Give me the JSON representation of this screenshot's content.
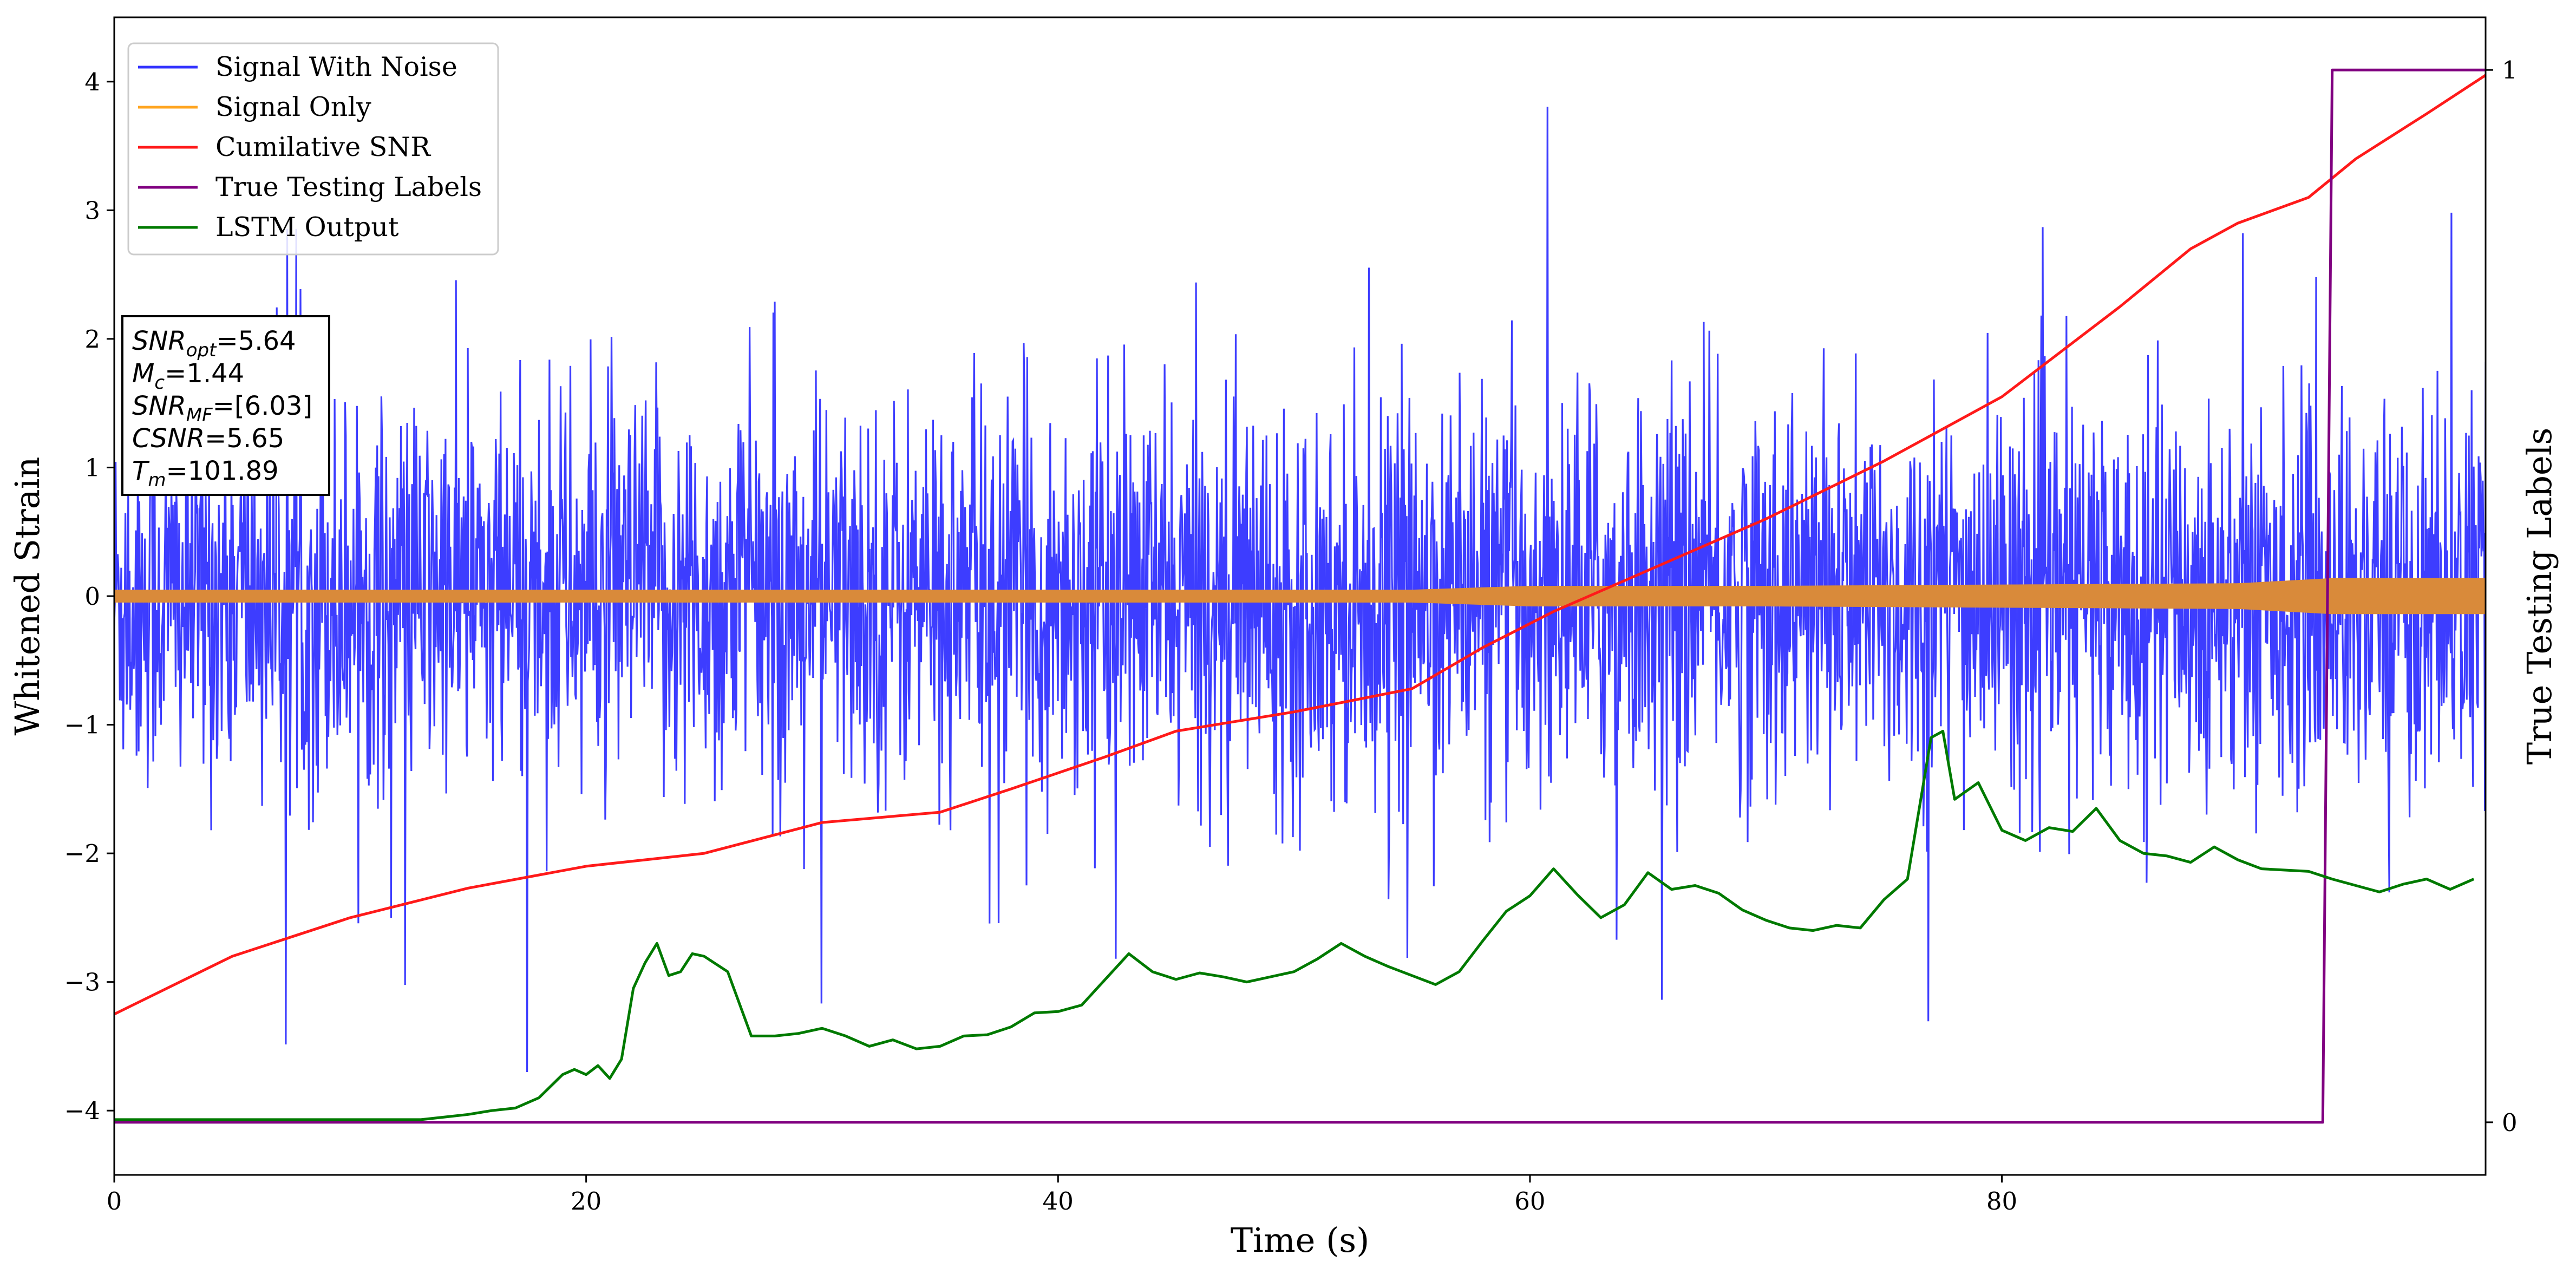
{
  "chart_data": {
    "type": "line",
    "xlabel": "Time (s)",
    "ylabel": "Whitened Strain",
    "y2label": "True Testing Labels",
    "xlim": [
      0,
      100.5
    ],
    "ylim": [
      -4.5,
      4.5
    ],
    "y2lim": [
      -0.05,
      1.05
    ],
    "grid": false,
    "legend_position": "top-left",
    "x_ticks": [
      0,
      20,
      40,
      60,
      80
    ],
    "y_ticks": [
      -4,
      -3,
      -2,
      -1,
      0,
      1,
      2,
      3,
      4
    ],
    "y2_ticks": [
      0,
      1
    ],
    "annotation": {
      "lines": [
        {
          "base": "SNR",
          "sub": "opt",
          "value": "=5.64"
        },
        {
          "base": "M",
          "sub": "c",
          "value": "=1.44"
        },
        {
          "base": "SNR",
          "sub": "MF",
          "value": "=[6.03]"
        },
        {
          "base": "CSNR",
          "sub": "",
          "value": "=5.65"
        },
        {
          "base": "T",
          "sub": "m",
          "value": "=101.89"
        }
      ]
    },
    "series": [
      {
        "name": "Signal With Noise",
        "color": "#3333ff",
        "axis": "left",
        "kind": "noise",
        "approx_std": 0.75,
        "approx_range": [
          -3.7,
          4.1
        ]
      },
      {
        "name": "Signal Only",
        "color": "#ffa520",
        "band_color": "#d98a3a",
        "axis": "left",
        "kind": "band",
        "envelope_x": [
          0,
          20,
          40,
          55,
          60,
          70,
          80,
          90,
          94,
          100.5
        ],
        "envelope_amp": [
          0.05,
          0.05,
          0.05,
          0.05,
          0.08,
          0.08,
          0.09,
          0.1,
          0.14,
          0.14
        ]
      },
      {
        "name": "Cumilative SNR",
        "color": "#ff1a1a",
        "axis": "left",
        "x": [
          0,
          5,
          10,
          15,
          20,
          25,
          30,
          35,
          38,
          42,
          45,
          50,
          55,
          58,
          61,
          65,
          70,
          75,
          80,
          85,
          88,
          90,
          93,
          95,
          98,
          100.5
        ],
        "y": [
          -3.25,
          -2.8,
          -2.5,
          -2.27,
          -2.1,
          -2.0,
          -1.76,
          -1.68,
          -1.5,
          -1.25,
          -1.05,
          -0.9,
          -0.72,
          -0.4,
          -0.12,
          0.2,
          0.6,
          1.05,
          1.55,
          2.25,
          2.7,
          2.9,
          3.1,
          3.4,
          3.75,
          4.05
        ]
      },
      {
        "name": "True Testing Labels",
        "color": "#800080",
        "axis": "right",
        "x": [
          0,
          93.6,
          94.0,
          100.5
        ],
        "y": [
          0,
          0,
          1,
          1
        ]
      },
      {
        "name": "LSTM Output",
        "color": "#007a00",
        "axis": "left",
        "x": [
          0,
          13,
          14,
          15,
          16,
          17,
          18,
          19,
          19.5,
          20,
          20.5,
          21,
          21.5,
          22,
          22.5,
          23,
          23.5,
          24,
          24.5,
          25,
          26,
          27,
          28,
          29,
          30,
          31,
          32,
          33,
          34,
          35,
          36,
          37,
          38,
          39,
          40,
          41,
          42,
          43,
          44,
          45,
          46,
          47,
          48,
          49,
          50,
          51,
          52,
          53,
          54,
          55,
          56,
          57,
          58,
          59,
          60,
          61,
          62,
          63,
          64,
          65,
          66,
          67,
          68,
          69,
          70,
          71,
          72,
          73,
          74,
          75,
          76,
          77,
          77.5,
          78,
          79,
          80,
          81,
          82,
          83,
          84,
          85,
          86,
          87,
          88,
          89,
          90,
          91,
          92,
          93,
          94,
          95,
          96,
          97,
          98,
          99,
          100
        ],
        "y": [
          -4.07,
          -4.07,
          -4.05,
          -4.03,
          -4.0,
          -3.98,
          -3.9,
          -3.72,
          -3.68,
          -3.72,
          -3.65,
          -3.75,
          -3.6,
          -3.05,
          -2.85,
          -2.7,
          -2.95,
          -2.92,
          -2.78,
          -2.8,
          -2.92,
          -3.42,
          -3.42,
          -3.4,
          -3.36,
          -3.42,
          -3.5,
          -3.45,
          -3.52,
          -3.5,
          -3.42,
          -3.41,
          -3.35,
          -3.24,
          -3.23,
          -3.18,
          -2.98,
          -2.78,
          -2.92,
          -2.98,
          -2.93,
          -2.96,
          -3.0,
          -2.96,
          -2.92,
          -2.82,
          -2.7,
          -2.8,
          -2.88,
          -2.95,
          -3.02,
          -2.92,
          -2.68,
          -2.45,
          -2.33,
          -2.12,
          -2.32,
          -2.5,
          -2.4,
          -2.15,
          -2.28,
          -2.25,
          -2.31,
          -2.44,
          -2.52,
          -2.58,
          -2.6,
          -2.56,
          -2.58,
          -2.36,
          -2.2,
          -1.1,
          -1.05,
          -1.58,
          -1.45,
          -1.82,
          -1.9,
          -1.8,
          -1.83,
          -1.65,
          -1.9,
          -2.0,
          -2.02,
          -2.07,
          -1.95,
          -2.05,
          -2.12,
          -2.13,
          -2.14,
          -2.2,
          -2.25,
          -2.3,
          -2.24,
          -2.2,
          -2.28,
          -2.2
        ]
      }
    ]
  }
}
